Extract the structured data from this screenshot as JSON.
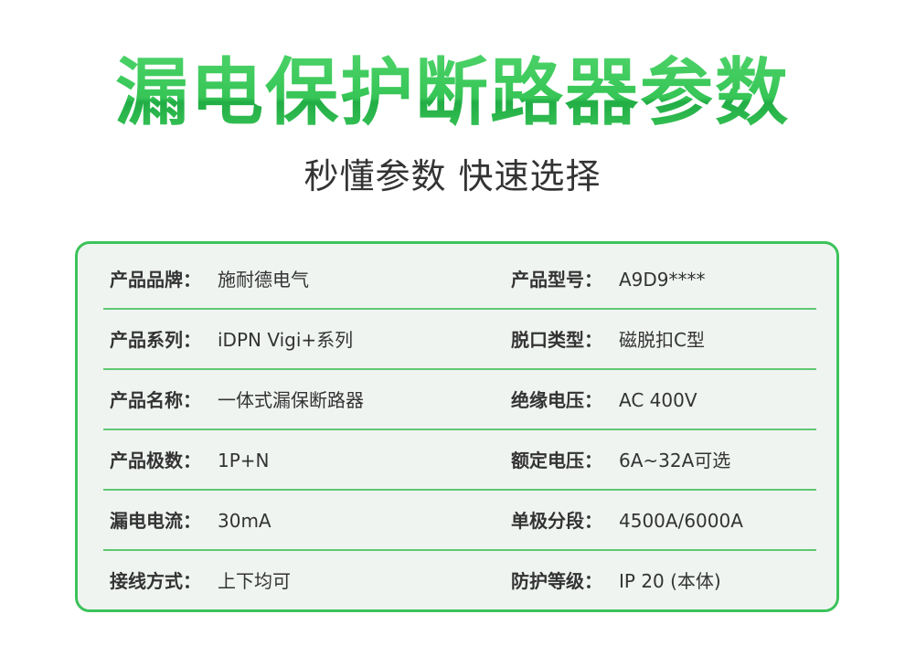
{
  "header": {
    "title": "漏电保护断路器参数",
    "subtitle": "秒懂参数 快速选择"
  },
  "colors": {
    "accent": "#3cc35a",
    "card_bg": "#f0f4f1"
  },
  "specs": [
    {
      "left_label": "产品品牌：",
      "left_value": "施耐德电气",
      "right_label": "产品型号：",
      "right_value": "A9D9****"
    },
    {
      "left_label": "产品系列：",
      "left_value": "iDPN Vigi+系列",
      "right_label": "脱口类型：",
      "right_value": "磁脱扣C型"
    },
    {
      "left_label": "产品名称：",
      "left_value": "一体式漏保断路器",
      "right_label": "绝缘电压：",
      "right_value": "AC 400V"
    },
    {
      "left_label": "产品极数：",
      "left_value": "1P+N",
      "right_label": "额定电压：",
      "right_value": "6A~32A可选"
    },
    {
      "left_label": "漏电电流：",
      "left_value": "30mA",
      "right_label": "单极分段：",
      "right_value": "4500A/6000A"
    },
    {
      "left_label": "接线方式：",
      "left_value": "上下均可",
      "right_label": "防护等级：",
      "right_value": "IP 20 (本体)"
    }
  ]
}
